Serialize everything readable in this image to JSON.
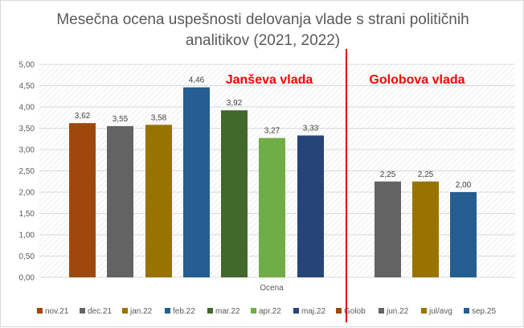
{
  "title_line1": "Mesečna ocena uspešnosti delovanja vlade s strani političnih",
  "title_line2": "analitikov (2021, 2022)",
  "chart_data": {
    "type": "bar",
    "title": "Mesečna ocena uspešnosti delovanja vlade s strani političnih analitikov (2021, 2022)",
    "xlabel": "Ocena",
    "ylabel": "",
    "ylim": [
      0,
      5
    ],
    "yticks": [
      "0,00",
      "0,50",
      "1,00",
      "1,50",
      "2,00",
      "2,50",
      "3,00",
      "3,50",
      "4,00",
      "4,50",
      "5,00"
    ],
    "grid": true,
    "legend_position": "bottom",
    "series": [
      {
        "name": "nov.21",
        "value": 3.62,
        "label": "3,62",
        "color": "#9e480e"
      },
      {
        "name": "dec.21",
        "value": 3.55,
        "label": "3,55",
        "color": "#636363"
      },
      {
        "name": "jan.22",
        "value": 3.58,
        "label": "3,58",
        "color": "#997300"
      },
      {
        "name": "feb.22",
        "value": 4.46,
        "label": "4,46",
        "color": "#255e91"
      },
      {
        "name": "mar.22",
        "value": 3.92,
        "label": "3,92",
        "color": "#43682b"
      },
      {
        "name": "apr.22",
        "value": 3.27,
        "label": "3,27",
        "color": "#70ad47"
      },
      {
        "name": "maj.22",
        "value": 3.33,
        "label": "3,33",
        "color": "#264478"
      },
      {
        "name": "Golob",
        "value": null,
        "label": "",
        "color": "#9e480e"
      },
      {
        "name": "jun.22",
        "value": 2.25,
        "label": "2,25",
        "color": "#636363"
      },
      {
        "name": "jul/avg",
        "value": 2.25,
        "label": "2,25",
        "color": "#997300"
      },
      {
        "name": "sep.25",
        "value": 2.0,
        "label": "2,00",
        "color": "#255e91"
      }
    ],
    "annotations": [
      {
        "text": "Janševa vlada",
        "color": "#ff0000"
      },
      {
        "text": "Golobova vlada",
        "color": "#ff0000"
      }
    ]
  }
}
